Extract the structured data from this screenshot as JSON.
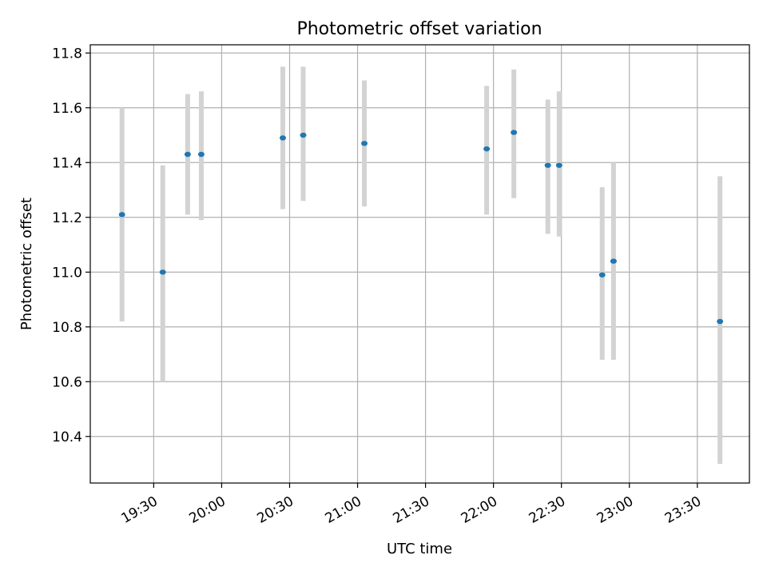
{
  "chart_data": {
    "type": "scatter",
    "title": "Photometric offset variation",
    "xlabel": "UTC time",
    "ylabel": "Photometric offset",
    "grid": true,
    "x_axis": {
      "kind": "time",
      "ticks": [
        "19:30",
        "20:00",
        "20:30",
        "21:00",
        "21:30",
        "22:00",
        "22:30",
        "23:00",
        "23:30"
      ],
      "range": [
        "19:02",
        "23:53"
      ]
    },
    "y_axis": {
      "ticks": [
        "10.4",
        "10.6",
        "10.8",
        "11.0",
        "11.2",
        "11.4",
        "11.6",
        "11.8"
      ],
      "range": [
        10.23,
        11.83
      ]
    },
    "colors": {
      "point": "#1f77b4",
      "error_bar": "#d3d3d3",
      "grid": "#b0b0b0"
    },
    "points": [
      {
        "t": "19:16",
        "y": 11.21,
        "lo": 10.82,
        "hi": 11.6
      },
      {
        "t": "19:34",
        "y": 11.0,
        "lo": 10.6,
        "hi": 11.39
      },
      {
        "t": "19:45",
        "y": 11.43,
        "lo": 11.21,
        "hi": 11.65
      },
      {
        "t": "19:51",
        "y": 11.43,
        "lo": 11.19,
        "hi": 11.66
      },
      {
        "t": "20:27",
        "y": 11.49,
        "lo": 11.23,
        "hi": 11.75
      },
      {
        "t": "20:36",
        "y": 11.5,
        "lo": 11.26,
        "hi": 11.75
      },
      {
        "t": "21:03",
        "y": 11.47,
        "lo": 11.24,
        "hi": 11.7
      },
      {
        "t": "21:57",
        "y": 11.45,
        "lo": 11.21,
        "hi": 11.68
      },
      {
        "t": "22:09",
        "y": 11.51,
        "lo": 11.27,
        "hi": 11.74
      },
      {
        "t": "22:24",
        "y": 11.39,
        "lo": 11.14,
        "hi": 11.63
      },
      {
        "t": "22:29",
        "y": 11.39,
        "lo": 11.13,
        "hi": 11.66
      },
      {
        "t": "22:48",
        "y": 10.99,
        "lo": 10.68,
        "hi": 11.31
      },
      {
        "t": "22:53",
        "y": 11.04,
        "lo": 10.68,
        "hi": 11.4
      },
      {
        "t": "23:40",
        "y": 10.82,
        "lo": 10.3,
        "hi": 11.35
      }
    ]
  }
}
